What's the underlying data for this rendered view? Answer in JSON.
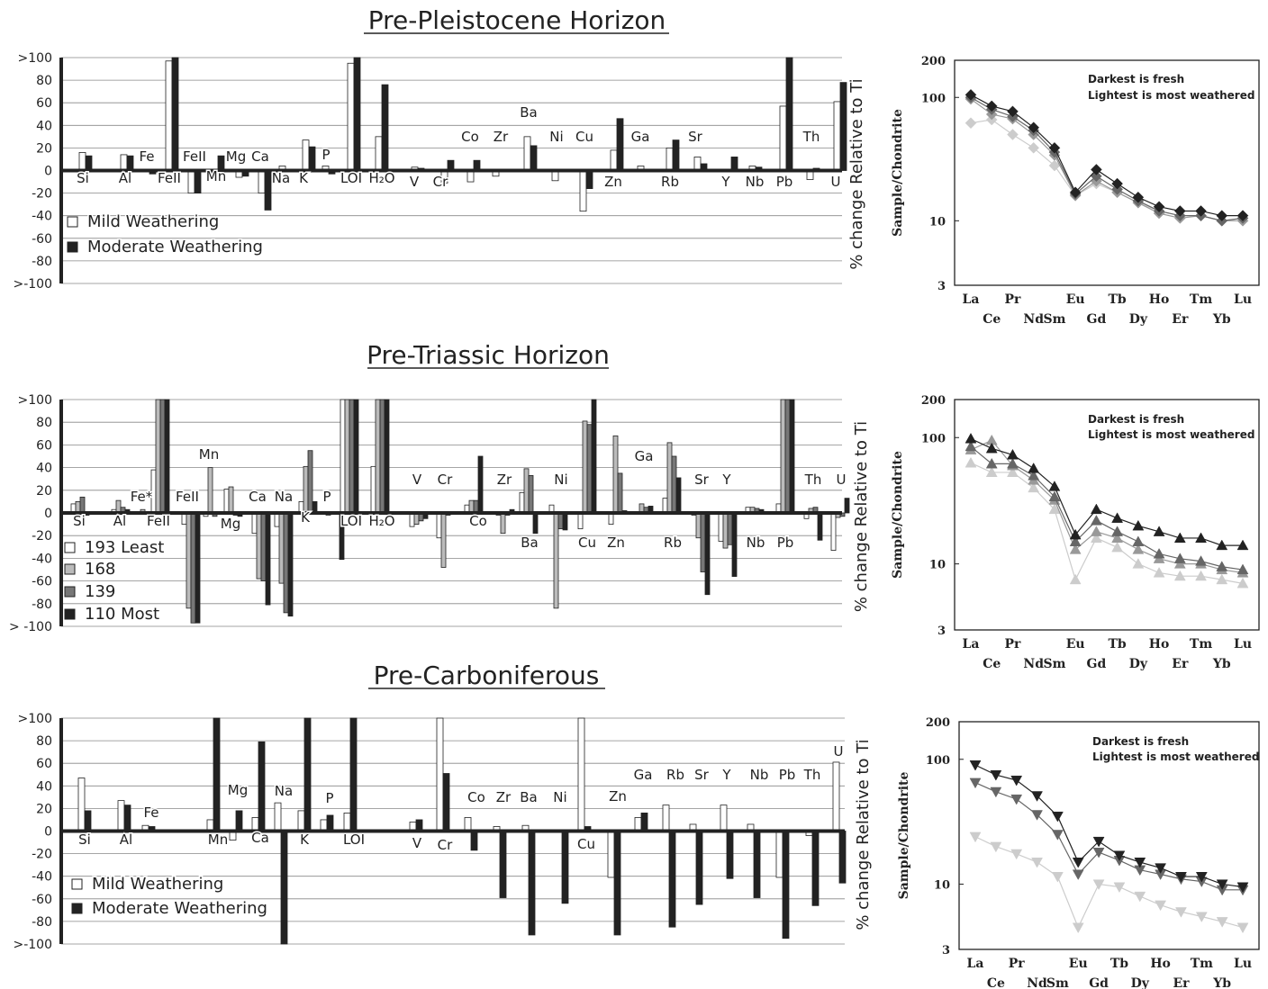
{
  "y_axis_label": "% change Relative to Ti",
  "ree_y_label": "Sample/Chondrite",
  "ree_elements": [
    "La",
    "Ce",
    "Pr",
    "Nd",
    "Sm",
    "Eu",
    "Gd",
    "Tb",
    "Dy",
    "Ho",
    "Er",
    "Tm",
    "Yb",
    "Lu"
  ],
  "ree_top_labels": [
    "La",
    "Pr",
    "Eu",
    "Tb",
    "Ho",
    "Tm",
    "Lu"
  ],
  "ree_bottom_labels": [
    "Ce",
    "Nd",
    "Sm",
    "Gd",
    "Dy",
    "Er",
    "Yb"
  ],
  "ree_yticks": [
    "200",
    "100",
    "10",
    "3"
  ],
  "ree_note_1": "Darkest is fresh",
  "ree_note_2": "Lightest is most weathered",
  "bar_ticks": [
    ">100",
    "80",
    "60",
    "40",
    "20",
    "0",
    "-20",
    "-40",
    "-60",
    "-80",
    ">-100"
  ],
  "bar_ticks_t": [
    ">100",
    "80",
    "60",
    "40",
    "20",
    "0",
    "-20",
    "-40",
    "-60",
    "-80",
    "> -100"
  ],
  "colors": {
    "s1": "#ffffff",
    "s2": "#bbbbbb",
    "s3": "#777777",
    "s4": "#222222",
    "ree1": "#222222",
    "ree2": "#666666",
    "ree3": "#999999",
    "ree4": "#cccccc"
  },
  "chart_data": [
    {
      "type": "bar",
      "title": "Pre-Pleistocene Horizon",
      "ylabel": "% change Relative to Ti",
      "ylim": [
        -100,
        100
      ],
      "legend": [
        "Mild Weathering",
        "Moderate Weathering"
      ],
      "categories": [
        "Si",
        "Al",
        "Fe",
        "FeII",
        "FeII",
        "Mn",
        "Mg",
        "Ca",
        "Na",
        "K",
        "P",
        "LOI",
        "H2O",
        "V",
        "Cr",
        "Co",
        "Zr",
        "Ba",
        "Ni",
        "Cu",
        "Zn",
        "Ga",
        "Rb",
        "Sr",
        "Y",
        "Nb",
        "Pb",
        "Th",
        "U"
      ],
      "series": [
        {
          "name": "Mild Weathering",
          "values": [
            16,
            14,
            0,
            97,
            -20,
            -3,
            -6,
            -20,
            4,
            27,
            4,
            95,
            30,
            3,
            -11,
            -10,
            -5,
            30,
            -9,
            -36,
            18,
            4,
            20,
            12,
            0,
            4,
            57,
            -8,
            61
          ]
        },
        {
          "name": "Moderate Weathering",
          "values": [
            13,
            13,
            -3,
            100,
            -20,
            13,
            -5,
            -35,
            0,
            21,
            -3,
            100,
            76,
            2,
            9,
            9,
            0,
            22,
            0,
            -16,
            46,
            0,
            27,
            6,
            12,
            3,
            100,
            2,
            78
          ]
        }
      ]
    },
    {
      "type": "line",
      "title": "",
      "ylabel": "Sample/Chondrite",
      "yscale": "log",
      "ylim": [
        3,
        200
      ],
      "categories": [
        "La",
        "Ce",
        "Pr",
        "Nd",
        "Sm",
        "Eu",
        "Gd",
        "Tb",
        "Dy",
        "Ho",
        "Er",
        "Tm",
        "Yb",
        "Lu"
      ],
      "series": [
        {
          "values": [
            105,
            85,
            77,
            57,
            39,
            17,
            26,
            20,
            15.5,
            13,
            12,
            12,
            11,
            11
          ]
        },
        {
          "values": [
            100,
            80,
            70,
            54,
            36,
            16.5,
            23,
            18,
            14.5,
            12,
            11,
            11,
            10,
            10.5
          ]
        },
        {
          "values": [
            97,
            73,
            67,
            50,
            34,
            16,
            21,
            17,
            14,
            11.5,
            10.5,
            11,
            10,
            10
          ]
        },
        {
          "values": [
            62,
            66,
            50,
            39,
            28,
            16,
            20,
            17,
            14,
            12,
            11,
            11,
            10,
            10.5
          ]
        }
      ]
    },
    {
      "type": "bar",
      "title": "Pre-Triassic Horizon",
      "ylabel": "% change Relative to Ti",
      "ylim": [
        -100,
        100
      ],
      "legend": [
        "193 Least",
        "168",
        "139",
        "110 Most"
      ],
      "categories": [
        "Si",
        "Al",
        "Fe*",
        "FeII",
        "FeII",
        "Mn",
        "Mg",
        "Ca",
        "Na",
        "K",
        "P",
        "LOI",
        "H2O",
        "V",
        "Cr",
        "Co",
        "Zr",
        "Ba",
        "Ni",
        "Cu",
        "Zn",
        "Ga",
        "Rb",
        "Sr",
        "Y",
        "Nb",
        "Pb",
        "Th",
        "U"
      ],
      "series": [
        {
          "name": "193 Least",
          "values": [
            8,
            3,
            0,
            38,
            -10,
            -3,
            21,
            -18,
            -12,
            10,
            -2,
            100,
            41,
            -12,
            -22,
            7,
            -2,
            18,
            7,
            -14,
            -10,
            0,
            13,
            -2,
            -25,
            5,
            8,
            -5,
            -33
          ]
        },
        {
          "name": "168",
          "values": [
            10,
            11,
            3,
            100,
            -84,
            40,
            23,
            -58,
            -62,
            41,
            0,
            100,
            100,
            -10,
            -48,
            11,
            -18,
            39,
            -84,
            81,
            68,
            8,
            62,
            -22,
            -31,
            5,
            100,
            4,
            -4
          ]
        },
        {
          "name": "139",
          "values": [
            14,
            5,
            0,
            100,
            -97,
            -3,
            -2,
            -60,
            -88,
            55,
            0,
            100,
            100,
            -7,
            -2,
            11,
            -2,
            33,
            -14,
            78,
            35,
            5,
            50,
            -52,
            -28,
            4,
            100,
            5,
            -3
          ]
        },
        {
          "name": "110 Most",
          "values": [
            -2,
            3,
            0,
            100,
            -97,
            0,
            -3,
            -81,
            -91,
            10,
            -41,
            100,
            100,
            -5,
            0,
            50,
            3,
            -18,
            -15,
            100,
            2,
            6,
            31,
            -72,
            -56,
            3,
            100,
            -24,
            13
          ]
        }
      ]
    },
    {
      "type": "line",
      "title": "",
      "ylabel": "Sample/Chondrite",
      "yscale": "log",
      "ylim": [
        3,
        200
      ],
      "categories": [
        "La",
        "Ce",
        "Pr",
        "Nd",
        "Sm",
        "Eu",
        "Gd",
        "Tb",
        "Dy",
        "Ho",
        "Er",
        "Tm",
        "Yb",
        "Lu"
      ],
      "series": [
        {
          "values": [
            98,
            82,
            73,
            57,
            41,
            17,
            27,
            23,
            20,
            18,
            16,
            16,
            14,
            14
          ]
        },
        {
          "values": [
            85,
            62,
            62,
            50,
            34,
            15,
            22,
            18,
            15,
            12,
            11,
            10.5,
            9.5,
            9
          ]
        },
        {
          "values": [
            80,
            95,
            60,
            46,
            32,
            13,
            18,
            16,
            13,
            11,
            10,
            10,
            9,
            8.5
          ]
        },
        {
          "values": [
            63,
            53,
            53,
            40,
            27,
            7.5,
            16,
            13.5,
            10,
            8.5,
            8,
            8,
            7.5,
            7
          ]
        }
      ]
    },
    {
      "type": "bar",
      "title": "Pre-Carboniferous",
      "ylabel": "% change Relative to Ti",
      "ylim": [
        -100,
        100
      ],
      "legend": [
        "Mild Weathering",
        "Moderate Weathering"
      ],
      "categories": [
        "Si",
        "Al",
        "Fe",
        "Mn",
        "Mg",
        "Ca",
        "Na",
        "K",
        "P",
        "LOI",
        "V",
        "Cr",
        "Co",
        "Zr",
        "Ba",
        "Ni",
        "Cu",
        "Zn",
        "Ga",
        "Rb",
        "Sr",
        "Y",
        "Nb",
        "Pb",
        "Th",
        "U"
      ],
      "series": [
        {
          "name": "Mild Weathering",
          "values": [
            47,
            27,
            5,
            10,
            -8,
            12,
            25,
            18,
            10,
            16,
            8,
            100,
            12,
            4,
            5,
            0,
            100,
            -41,
            12,
            23,
            6,
            23,
            6,
            -41,
            -4,
            61
          ]
        },
        {
          "name": "Moderate Weathering",
          "values": [
            18,
            23,
            4,
            100,
            18,
            79,
            -100,
            100,
            14,
            100,
            10,
            51,
            -17,
            -59,
            -92,
            -64,
            4,
            -92,
            16,
            -85,
            -65,
            -42,
            -59,
            -95,
            -66,
            -46
          ]
        }
      ]
    },
    {
      "type": "line",
      "title": "",
      "ylabel": "Sample/Chondrite",
      "yscale": "log",
      "ylim": [
        3,
        200
      ],
      "categories": [
        "La",
        "Ce",
        "Pr",
        "Nd",
        "Sm",
        "Eu",
        "Gd",
        "Tb",
        "Dy",
        "Ho",
        "Er",
        "Tm",
        "Yb",
        "Lu"
      ],
      "series": [
        {
          "values": [
            90,
            75,
            68,
            51,
            35,
            15,
            22,
            17,
            15,
            13.5,
            11.5,
            11.5,
            10,
            9.5
          ]
        },
        {
          "values": [
            65,
            55,
            48,
            36,
            25,
            12,
            18,
            15.5,
            13,
            12,
            11,
            10.5,
            9,
            9
          ]
        },
        {
          "values": [
            24,
            20,
            17.5,
            15,
            11.5,
            4.5,
            10,
            9.5,
            8,
            6.8,
            6,
            5.5,
            5,
            4.5
          ]
        }
      ]
    }
  ]
}
